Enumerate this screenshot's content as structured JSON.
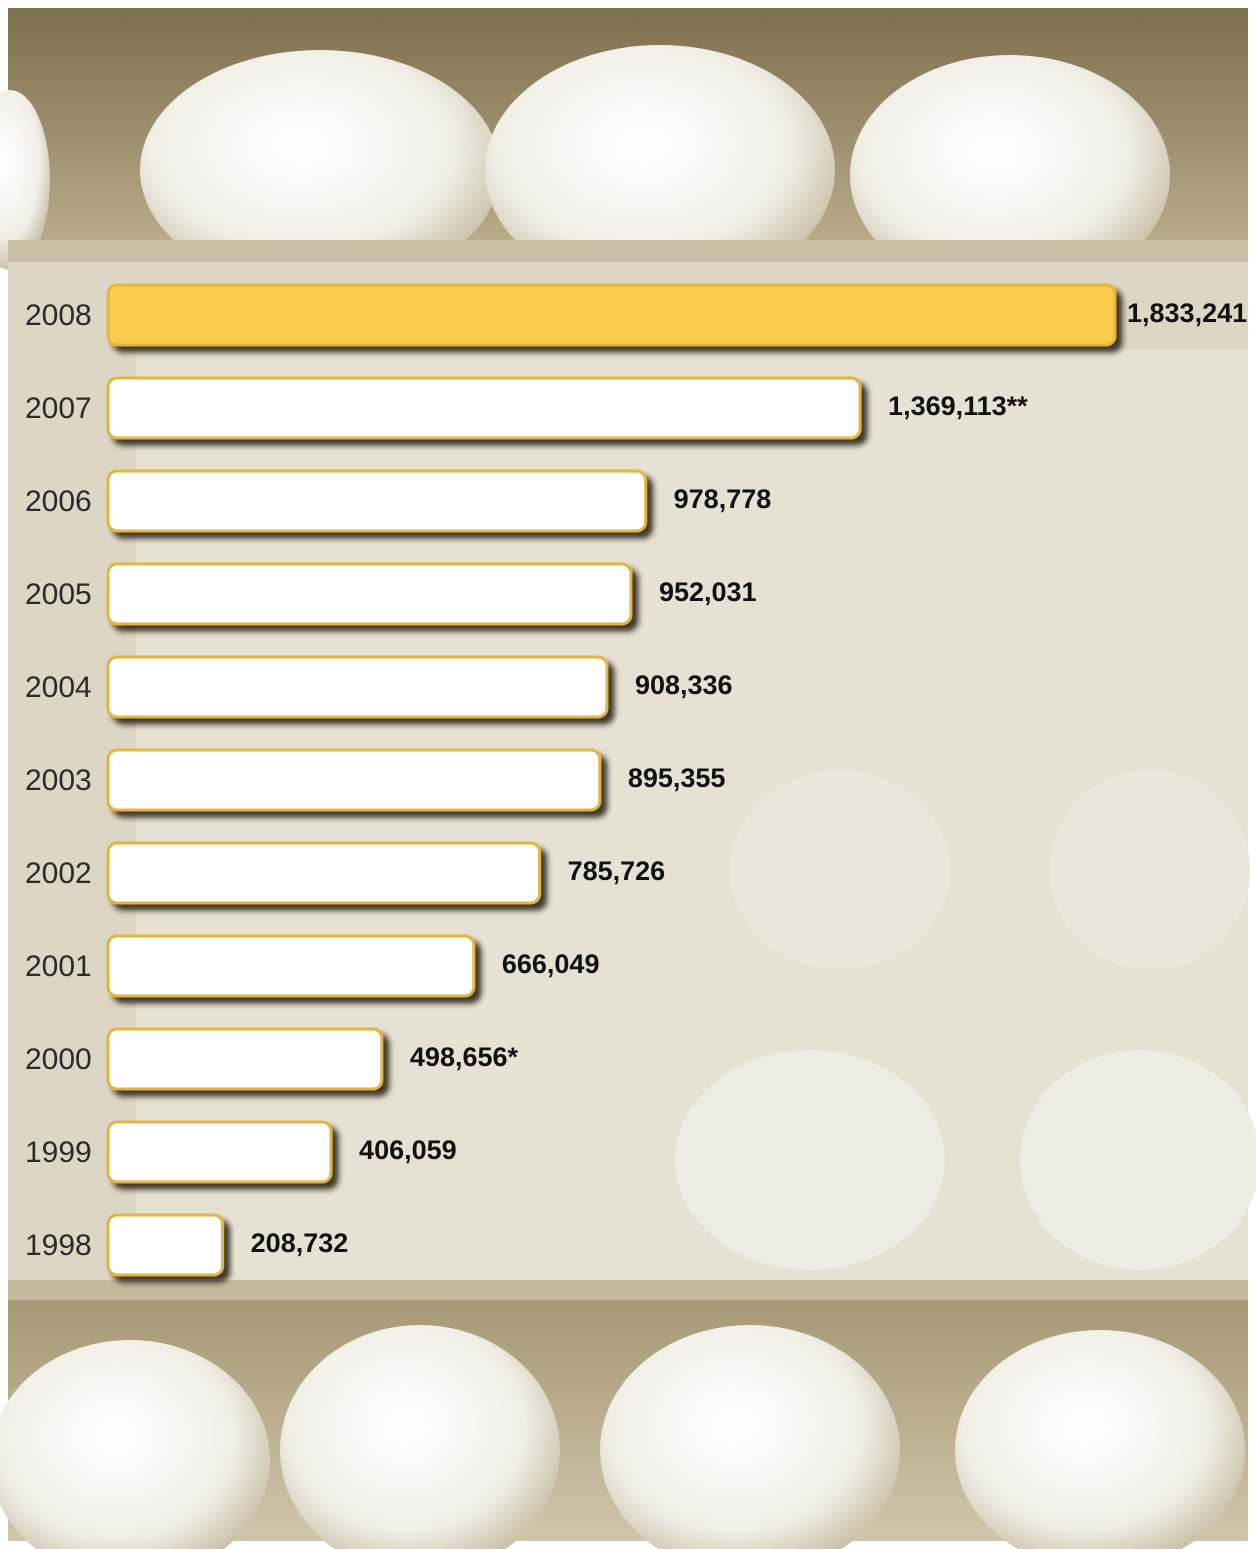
{
  "chart_data": {
    "type": "barh",
    "categories": [
      "2008",
      "2007",
      "2006",
      "2005",
      "2004",
      "2003",
      "2002",
      "2001",
      "2000",
      "1999",
      "1998"
    ],
    "values": [
      1833241,
      1369113,
      978778,
      952031,
      908336,
      895355,
      785726,
      666049,
      498656,
      406059,
      208732
    ],
    "value_labels": [
      "1,833,241",
      "1,369,113**",
      "978,778",
      "952,031",
      "908,336",
      "895,355",
      "785,726",
      "666,049",
      "498,656*",
      "406,059",
      "208,732"
    ],
    "colors": [
      "#f9cd4b",
      "#ffffff",
      "#ffffff",
      "#ffffff",
      "#ffffff",
      "#ffffff",
      "#ffffff",
      "#ffffff",
      "#ffffff",
      "#ffffff",
      "#ffffff"
    ],
    "edgecolor": "#e3b53c"
  }
}
